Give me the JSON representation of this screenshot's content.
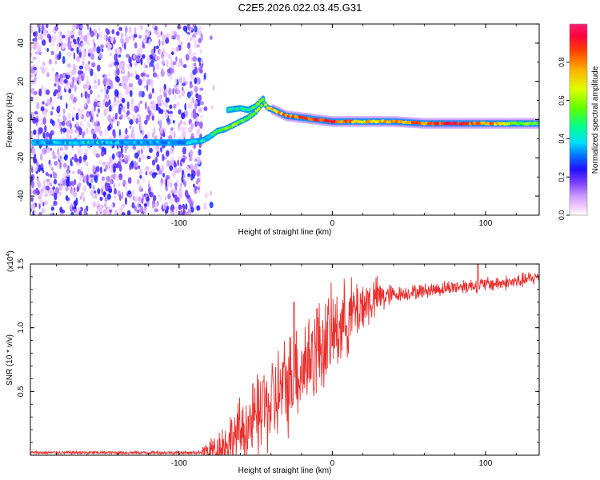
{
  "title": "C2E5.2026.022.03.45.G31",
  "spectrogram": {
    "type": "heatmap",
    "xlabel": "Height of straight line (km)",
    "ylabel": "Frequency (Hz)",
    "xlim": [
      -197,
      135
    ],
    "ylim": [
      -50,
      50
    ],
    "xticks": [
      -100,
      0,
      100
    ],
    "yticks": [
      -40,
      -20,
      0,
      20,
      40
    ],
    "colorbar": {
      "label": "Normalized spectral amplitude",
      "ticks": [
        "0.0",
        "0.2",
        "0.4",
        "0.6",
        "0.8"
      ],
      "tick_values": [
        0.0,
        0.2,
        0.4,
        0.6,
        0.8
      ],
      "range": [
        0,
        1
      ],
      "colors": [
        "#ffffff",
        "#f2d0ff",
        "#c89bff",
        "#7a40ff",
        "#2010ff",
        "#0080ff",
        "#00e0ff",
        "#00ff90",
        "#60ff00",
        "#e0ff00",
        "#ffb000",
        "#ff4000",
        "#ff0040",
        "#ff2070"
      ]
    },
    "noise_region_x": [
      -197,
      -85
    ],
    "trace": [
      {
        "x": -195,
        "y": -12,
        "a": 0.35
      },
      {
        "x": -170,
        "y": -12,
        "a": 0.38
      },
      {
        "x": -150,
        "y": -12,
        "a": 0.36
      },
      {
        "x": -130,
        "y": -12,
        "a": 0.32
      },
      {
        "x": -110,
        "y": -12,
        "a": 0.3
      },
      {
        "x": -95,
        "y": -12,
        "a": 0.34
      },
      {
        "x": -85,
        "y": -11,
        "a": 0.4
      },
      {
        "x": -80,
        "y": -9,
        "a": 0.45
      },
      {
        "x": -75,
        "y": -6,
        "a": 0.5
      },
      {
        "x": -70,
        "y": -5,
        "a": 0.52
      },
      {
        "x": -65,
        "y": -3,
        "a": 0.55
      },
      {
        "x": -60,
        "y": -1,
        "a": 0.55
      },
      {
        "x": -55,
        "y": 1,
        "a": 0.55
      },
      {
        "x": -50,
        "y": 4,
        "a": 0.56
      },
      {
        "x": -45,
        "y": 9,
        "a": 0.6
      },
      {
        "x": -42,
        "y": 6,
        "a": 0.66
      },
      {
        "x": -38,
        "y": 5,
        "a": 0.72
      },
      {
        "x": -30,
        "y": 2,
        "a": 0.8
      },
      {
        "x": -20,
        "y": 1,
        "a": 0.85
      },
      {
        "x": -10,
        "y": 0,
        "a": 0.9
      },
      {
        "x": 0,
        "y": -1,
        "a": 0.88
      },
      {
        "x": 20,
        "y": -1,
        "a": 0.7
      },
      {
        "x": 40,
        "y": -1,
        "a": 0.75
      },
      {
        "x": 60,
        "y": -2,
        "a": 0.8
      },
      {
        "x": 80,
        "y": -2,
        "a": 0.9
      },
      {
        "x": 100,
        "y": -2,
        "a": 0.8
      },
      {
        "x": 120,
        "y": -2,
        "a": 0.6
      },
      {
        "x": 135,
        "y": -2,
        "a": 0.55
      }
    ],
    "branch_trace": [
      {
        "x": -68,
        "y": 5,
        "a": 0.45
      },
      {
        "x": -60,
        "y": 6,
        "a": 0.45
      },
      {
        "x": -55,
        "y": 5,
        "a": 0.45
      },
      {
        "x": -50,
        "y": 7,
        "a": 0.5
      },
      {
        "x": -45,
        "y": 11,
        "a": 0.55
      }
    ]
  },
  "snr": {
    "type": "line",
    "xlabel": "Height of straight line (km)",
    "ylabel": "SNR (10 * v/v)",
    "multiplier": "(x10",
    "multiplier_exp": "4",
    "multiplier_close": ")",
    "xlim": [
      -197,
      135
    ],
    "ylim": [
      0,
      1.5
    ],
    "xticks": [
      -100,
      0,
      100
    ],
    "yticks": [
      "0.5",
      "1.0",
      "1.5"
    ],
    "ytick_values": [
      0.5,
      1.0,
      1.5
    ],
    "color": "#e8302e",
    "envelope": [
      {
        "x": -197,
        "y": 0.02
      },
      {
        "x": -90,
        "y": 0.02
      },
      {
        "x": -80,
        "y": 0.03
      },
      {
        "x": -70,
        "y": 0.08
      },
      {
        "x": -60,
        "y": 0.18
      },
      {
        "x": -50,
        "y": 0.28
      },
      {
        "x": -40,
        "y": 0.4
      },
      {
        "x": -30,
        "y": 0.55
      },
      {
        "x": -20,
        "y": 0.7
      },
      {
        "x": -10,
        "y": 0.82
      },
      {
        "x": 0,
        "y": 0.95
      },
      {
        "x": 10,
        "y": 1.08
      },
      {
        "x": 20,
        "y": 1.18
      },
      {
        "x": 30,
        "y": 1.24
      },
      {
        "x": 40,
        "y": 1.26
      },
      {
        "x": 60,
        "y": 1.29
      },
      {
        "x": 80,
        "y": 1.32
      },
      {
        "x": 100,
        "y": 1.34
      },
      {
        "x": 120,
        "y": 1.36
      },
      {
        "x": 135,
        "y": 1.4
      }
    ],
    "spikes": [
      {
        "x": -25,
        "y": 1.2
      },
      {
        "x": -45,
        "y": 0.58
      },
      {
        "x": -10,
        "y": 1.15
      },
      {
        "x": 95,
        "y": 1.5
      }
    ]
  }
}
